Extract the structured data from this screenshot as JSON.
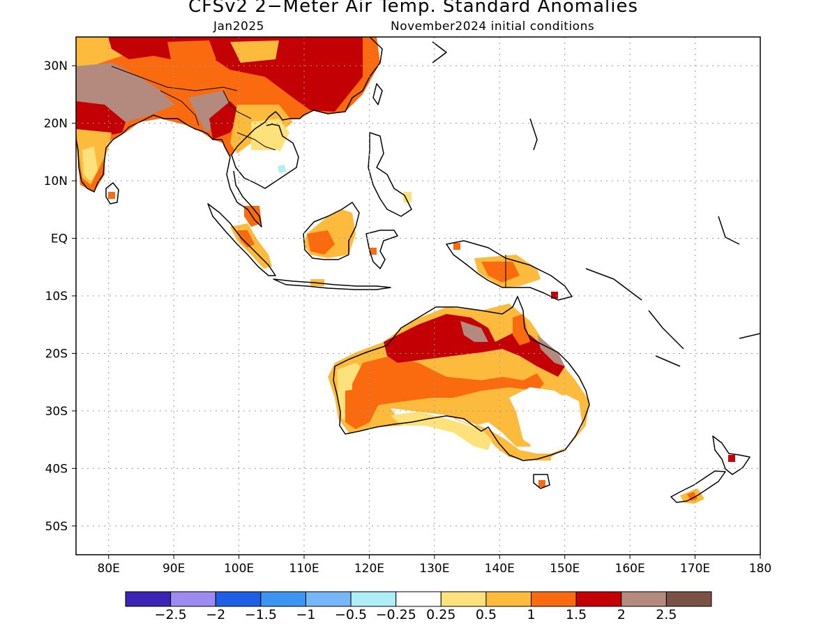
{
  "title": "CFSv2 2−Meter Air Temp. Standard Anomalies",
  "subtitle_left": "Jan2025",
  "subtitle_right": "November2024 initial conditions",
  "map": {
    "lon_range": [
      75,
      180
    ],
    "lat_range": [
      -55,
      35
    ],
    "lat_ticks": [
      "30N",
      "20N",
      "10N",
      "EQ",
      "10S",
      "20S",
      "30S",
      "40S",
      "50S"
    ],
    "lon_ticks": [
      "80E",
      "90E",
      "100E",
      "110E",
      "120E",
      "130E",
      "140E",
      "150E",
      "160E",
      "170E",
      "180"
    ],
    "grid": "dotted",
    "land_outline_color": "#000000"
  },
  "legend": {
    "colors": [
      "#3a23b5",
      "#9d8bf0",
      "#1e5fe3",
      "#3d95f2",
      "#78b7f7",
      "#aeeef6",
      "#ffffff",
      "#fde27c",
      "#fdbb3d",
      "#fa6a0e",
      "#c30003",
      "#b48a7f",
      "#7a5145"
    ],
    "labels": [
      "−2.5",
      "−2",
      "−1.5",
      "−1",
      "−0.5",
      "−0.25",
      "0.25",
      "0.5",
      "1",
      "1.5",
      "2",
      "2.5"
    ]
  }
}
